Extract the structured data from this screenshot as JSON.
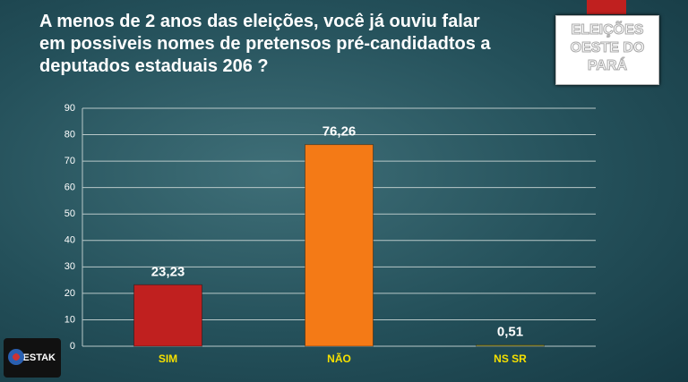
{
  "chart_data": {
    "type": "bar",
    "title": "A menos de 2 anos das eleições, você já ouviu falar\nem possiveis nomes  de pretensos pré-candidadtos a\ndeputados estaduais 206 ?",
    "categories": [
      "SIM",
      "NÃO",
      "NS SR"
    ],
    "values": [
      23.23,
      76.26,
      0.51
    ],
    "value_labels": [
      "23,23",
      "76,26",
      "0,51"
    ],
    "colors": [
      "#c0201f",
      "#f47a16",
      "#9a9a3a"
    ],
    "ylim": [
      0,
      90
    ],
    "yticks": [
      0,
      10,
      20,
      30,
      40,
      50,
      60,
      70,
      80,
      90
    ],
    "grid": true
  },
  "logo": "ELEIÇÕES\nOESTE DO\nPARÁ",
  "brand": "DESTAK"
}
